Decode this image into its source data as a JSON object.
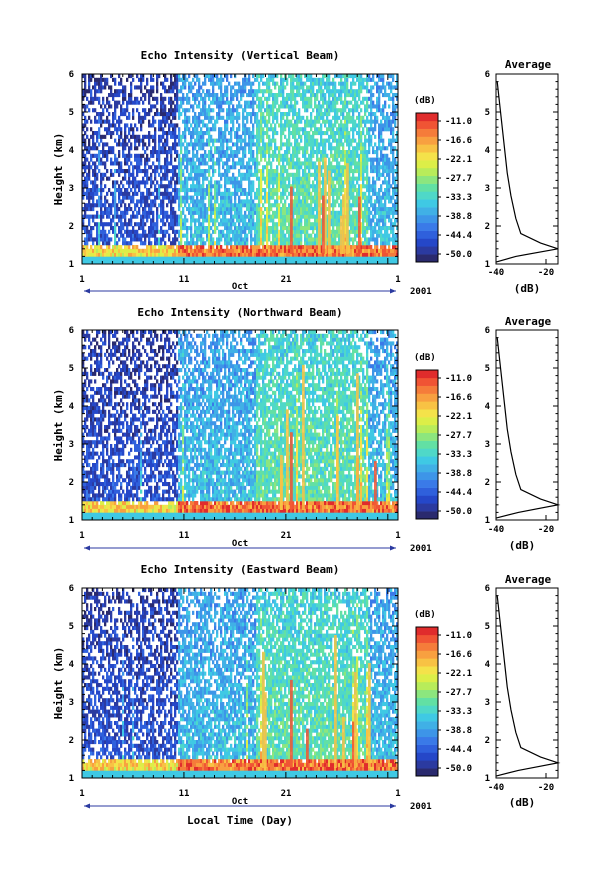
{
  "figure": {
    "bottom_xlabel": "Local Time (Day)",
    "year_label": "2001",
    "month_label": "Oct"
  },
  "colorbar": {
    "unit": "(dB)",
    "ticks": [
      "-11.0",
      "-16.6",
      "-22.1",
      "-27.7",
      "-33.3",
      "-38.8",
      "-44.4",
      "-50.0"
    ],
    "colors": [
      "#2a2a6e",
      "#2b3aa0",
      "#2547c8",
      "#2f60dc",
      "#3a7ae8",
      "#3d95e8",
      "#40b0e6",
      "#3fc9e4",
      "#4fd8c8",
      "#62e0a4",
      "#8ce67e",
      "#b8ec5a",
      "#dcee48",
      "#f4e24a",
      "#f8c244",
      "#f8a040",
      "#f57c3a",
      "#f05434",
      "#e02c2c"
    ]
  },
  "chart_data": [
    {
      "type": "heatmap",
      "title": "Echo Intensity (Vertical Beam)",
      "xlabel": "",
      "ylabel": "Height (km)",
      "x_ticks": [
        "1",
        "11",
        "21",
        "1"
      ],
      "xlim": [
        1,
        32
      ],
      "y_ticks": [
        "1",
        "2",
        "3",
        "4",
        "5",
        "6"
      ],
      "ylim": [
        1,
        6
      ],
      "z_range": [
        -50.0,
        -11.0
      ],
      "profile": {
        "title": "Average",
        "xlabel": "(dB)",
        "x_ticks": [
          "-40",
          "-20"
        ],
        "xlim": [
          -40,
          -15
        ],
        "points": [
          [
            -40,
            1.05
          ],
          [
            -32,
            1.2
          ],
          [
            -15,
            1.4
          ],
          [
            -22,
            1.55
          ],
          [
            -30,
            1.8
          ],
          [
            -32,
            2.2
          ],
          [
            -34,
            2.8
          ],
          [
            -35.5,
            3.4
          ],
          [
            -36.5,
            4.0
          ],
          [
            -37.5,
            4.6
          ],
          [
            -38.5,
            5.2
          ],
          [
            -39.5,
            5.8
          ]
        ]
      }
    },
    {
      "type": "heatmap",
      "title": "Echo Intensity (Northward Beam)",
      "xlabel": "",
      "ylabel": "Height (km)",
      "x_ticks": [
        "1",
        "11",
        "21",
        "1"
      ],
      "xlim": [
        1,
        32
      ],
      "y_ticks": [
        "1",
        "2",
        "3",
        "4",
        "5",
        "6"
      ],
      "ylim": [
        1,
        6
      ],
      "z_range": [
        -50.0,
        -11.0
      ],
      "profile": {
        "title": "Average",
        "xlabel": "(dB)",
        "x_ticks": [
          "-40",
          "-20"
        ],
        "xlim": [
          -40,
          -15
        ],
        "points": [
          [
            -40,
            1.05
          ],
          [
            -31,
            1.2
          ],
          [
            -15,
            1.4
          ],
          [
            -22,
            1.55
          ],
          [
            -30,
            1.8
          ],
          [
            -32,
            2.2
          ],
          [
            -34,
            2.8
          ],
          [
            -35.5,
            3.4
          ],
          [
            -36.5,
            4.0
          ],
          [
            -37.5,
            4.6
          ],
          [
            -38.5,
            5.2
          ],
          [
            -39.5,
            5.8
          ]
        ]
      }
    },
    {
      "type": "heatmap",
      "title": "Echo Intensity (Eastward Beam)",
      "xlabel": "Local Time (Day)",
      "ylabel": "Height (km)",
      "x_ticks": [
        "1",
        "11",
        "21",
        "1"
      ],
      "xlim": [
        1,
        32
      ],
      "y_ticks": [
        "1",
        "2",
        "3",
        "4",
        "5",
        "6"
      ],
      "ylim": [
        1,
        6
      ],
      "z_range": [
        -50.0,
        -11.0
      ],
      "profile": {
        "title": "Average",
        "xlabel": "(dB)",
        "x_ticks": [
          "-40",
          "-20"
        ],
        "xlim": [
          -40,
          -15
        ],
        "points": [
          [
            -40,
            1.05
          ],
          [
            -31,
            1.2
          ],
          [
            -15,
            1.4
          ],
          [
            -22,
            1.55
          ],
          [
            -30,
            1.8
          ],
          [
            -32,
            2.2
          ],
          [
            -34,
            2.8
          ],
          [
            -35.5,
            3.4
          ],
          [
            -36.5,
            4.0
          ],
          [
            -37.5,
            4.6
          ],
          [
            -38.5,
            5.2
          ],
          [
            -39.5,
            5.8
          ]
        ]
      }
    }
  ]
}
